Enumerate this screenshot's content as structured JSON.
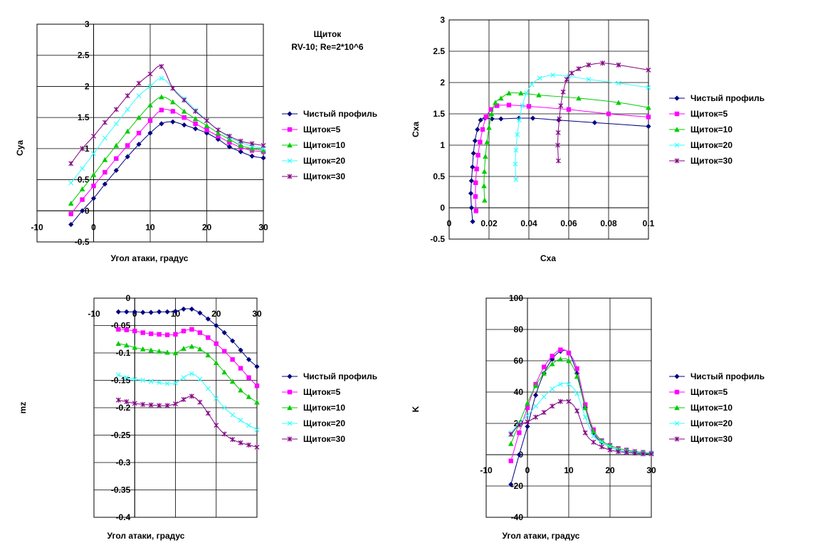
{
  "series_names": [
    "Чистый профиль",
    "Щиток=5",
    "Щиток=10",
    "Щиток=20",
    "Щиток=30"
  ],
  "series_colors": [
    "#000080",
    "#FF00FF",
    "#00CC00",
    "#33FFFF",
    "#800080"
  ],
  "series_markers": [
    "diamond",
    "square",
    "triangle",
    "x",
    "star"
  ],
  "chart_data": [
    {
      "id": "cya",
      "type": "line",
      "title": "Щиток",
      "subtitle": "RV-10; Re=2*10^6",
      "xlabel": "Угол атаки, градус",
      "ylabel": "Cya",
      "xlim": [
        -10,
        30
      ],
      "ylim": [
        -0.5,
        3
      ],
      "xticks": [
        "-10",
        "0",
        "10",
        "20",
        "30"
      ],
      "yticks": [
        "-0.5",
        "0",
        "0.5",
        "1",
        "1.5",
        "2",
        "2.5",
        "3"
      ],
      "legend": "right",
      "series": [
        {
          "name": "Чистый профиль",
          "x": [
            -4,
            -2,
            0,
            2,
            4,
            6,
            8,
            10,
            12,
            14,
            16,
            18,
            20,
            22,
            24,
            26,
            28,
            30
          ],
          "y": [
            -0.22,
            0,
            0.2,
            0.43,
            0.65,
            0.87,
            1.07,
            1.25,
            1.4,
            1.43,
            1.38,
            1.32,
            1.25,
            1.15,
            1.03,
            0.95,
            0.88,
            0.85
          ]
        },
        {
          "name": "Щиток=5",
          "x": [
            -4,
            -2,
            0,
            2,
            4,
            6,
            8,
            10,
            12,
            14,
            16,
            18,
            20,
            22,
            24,
            26,
            28,
            30
          ],
          "y": [
            -0.05,
            0.18,
            0.4,
            0.62,
            0.84,
            1.05,
            1.25,
            1.45,
            1.62,
            1.6,
            1.5,
            1.4,
            1.3,
            1.2,
            1.1,
            1.02,
            0.97,
            0.95
          ]
        },
        {
          "name": "Щиток=10",
          "x": [
            -4,
            -2,
            0,
            2,
            4,
            6,
            8,
            10,
            12,
            14,
            16,
            18,
            20,
            22,
            24,
            26,
            28,
            30
          ],
          "y": [
            0.12,
            0.35,
            0.58,
            0.82,
            1.05,
            1.28,
            1.5,
            1.7,
            1.83,
            1.75,
            1.6,
            1.48,
            1.37,
            1.25,
            1.15,
            1.05,
            1.0,
            0.97
          ]
        },
        {
          "name": "Щиток=20",
          "x": [
            -4,
            -2,
            0,
            2,
            4,
            6,
            8,
            10,
            12,
            14,
            16,
            18,
            20,
            22,
            24,
            26,
            28,
            30
          ],
          "y": [
            0.45,
            0.68,
            0.92,
            1.17,
            1.4,
            1.63,
            1.85,
            2.0,
            2.13,
            1.97,
            1.8,
            1.62,
            1.45,
            1.3,
            1.18,
            1.1,
            1.04,
            1.0
          ]
        },
        {
          "name": "Щиток=30",
          "x": [
            -4,
            -2,
            0,
            2,
            4,
            6,
            8,
            10,
            12,
            14,
            16,
            18,
            20,
            22,
            24,
            26,
            28,
            30
          ],
          "y": [
            0.76,
            1.0,
            1.2,
            1.42,
            1.63,
            1.85,
            2.05,
            2.2,
            2.32,
            1.97,
            1.78,
            1.6,
            1.45,
            1.3,
            1.2,
            1.12,
            1.08,
            1.05
          ]
        }
      ]
    },
    {
      "id": "polar",
      "type": "line",
      "xlabel": "Cxa",
      "ylabel": "Cxa",
      "xlim": [
        0,
        0.1
      ],
      "ylim": [
        -0.5,
        3
      ],
      "xticks": [
        "0",
        "0.02",
        "0.04",
        "0.06",
        "0.08",
        "0.1"
      ],
      "yticks": [
        "-0.5",
        "0",
        "0.5",
        "1",
        "1.5",
        "2",
        "2.5",
        "3"
      ],
      "legend": "right",
      "series": [
        {
          "name": "Чистый профиль",
          "x": [
            0.0118,
            0.0112,
            0.0109,
            0.0112,
            0.0117,
            0.0122,
            0.013,
            0.0142,
            0.0158,
            0.018,
            0.0215,
            0.026,
            0.035,
            0.042,
            0.055,
            0.073,
            0.1
          ],
          "y": [
            -0.22,
            0,
            0.23,
            0.43,
            0.65,
            0.87,
            1.07,
            1.25,
            1.4,
            1.43,
            1.42,
            1.42,
            1.43,
            1.43,
            1.4,
            1.36,
            1.3
          ]
        },
        {
          "name": "Щиток=5",
          "x": [
            0.0135,
            0.0132,
            0.0133,
            0.0138,
            0.0145,
            0.0155,
            0.0168,
            0.0185,
            0.021,
            0.024,
            0.03,
            0.04,
            0.06,
            0.08,
            0.1
          ],
          "y": [
            -0.05,
            0.18,
            0.4,
            0.62,
            0.84,
            1.05,
            1.25,
            1.45,
            1.57,
            1.63,
            1.64,
            1.62,
            1.57,
            1.5,
            1.45
          ]
        },
        {
          "name": "Щиток=10",
          "x": [
            0.0178,
            0.0175,
            0.0177,
            0.0182,
            0.019,
            0.02,
            0.0213,
            0.0232,
            0.026,
            0.03,
            0.036,
            0.045,
            0.065,
            0.085,
            0.1
          ],
          "y": [
            0.12,
            0.35,
            0.58,
            0.82,
            1.05,
            1.28,
            1.5,
            1.68,
            1.75,
            1.83,
            1.83,
            1.8,
            1.75,
            1.68,
            1.6
          ]
        },
        {
          "name": "Щиток=20",
          "x": [
            0.0335,
            0.0332,
            0.0335,
            0.0342,
            0.0352,
            0.0367,
            0.0388,
            0.0415,
            0.0455,
            0.052,
            0.06,
            0.07,
            0.085,
            0.1
          ],
          "y": [
            0.45,
            0.7,
            0.92,
            1.17,
            1.4,
            1.63,
            1.83,
            1.97,
            2.07,
            2.12,
            2.1,
            2.05,
            1.99,
            1.92
          ]
        },
        {
          "name": "Щиток=30",
          "x": [
            0.0548,
            0.0545,
            0.0547,
            0.0553,
            0.056,
            0.0572,
            0.059,
            0.0615,
            0.065,
            0.07,
            0.077,
            0.085,
            0.1
          ],
          "y": [
            0.75,
            1.0,
            1.2,
            1.42,
            1.63,
            1.85,
            2.05,
            2.15,
            2.22,
            2.28,
            2.31,
            2.28,
            2.2
          ]
        }
      ]
    },
    {
      "id": "mz",
      "type": "line",
      "xlabel": "Угол атаки, градус",
      "ylabel": "mz",
      "xlim": [
        -10,
        30
      ],
      "ylim": [
        -0.4,
        0
      ],
      "xticks": [
        "-10",
        "0",
        "10",
        "20",
        "30"
      ],
      "yticks": [
        "0",
        "-0.05",
        "-0.1",
        "-0.15",
        "-0.2",
        "-0.25",
        "-0.3",
        "-0.35",
        "-0.4"
      ],
      "legend": "right",
      "series": [
        {
          "name": "Чистый профиль",
          "x": [
            -4,
            -2,
            0,
            2,
            4,
            6,
            8,
            10,
            12,
            14,
            16,
            18,
            20,
            22,
            24,
            26,
            28,
            30
          ],
          "y": [
            -0.025,
            -0.025,
            -0.025,
            -0.026,
            -0.026,
            -0.025,
            -0.025,
            -0.024,
            -0.02,
            -0.02,
            -0.027,
            -0.038,
            -0.05,
            -0.063,
            -0.078,
            -0.095,
            -0.112,
            -0.125
          ]
        },
        {
          "name": "Щиток=5",
          "x": [
            -4,
            -2,
            0,
            2,
            4,
            6,
            8,
            10,
            12,
            14,
            16,
            18,
            20,
            22,
            24,
            26,
            28,
            30
          ],
          "y": [
            -0.057,
            -0.058,
            -0.06,
            -0.063,
            -0.065,
            -0.066,
            -0.067,
            -0.066,
            -0.06,
            -0.057,
            -0.063,
            -0.072,
            -0.083,
            -0.097,
            -0.112,
            -0.128,
            -0.145,
            -0.16
          ]
        },
        {
          "name": "Щиток=10",
          "x": [
            -4,
            -2,
            0,
            2,
            4,
            6,
            8,
            10,
            12,
            14,
            16,
            18,
            20,
            22,
            24,
            26,
            28,
            30
          ],
          "y": [
            -0.083,
            -0.086,
            -0.09,
            -0.093,
            -0.095,
            -0.097,
            -0.099,
            -0.1,
            -0.092,
            -0.088,
            -0.093,
            -0.104,
            -0.118,
            -0.135,
            -0.152,
            -0.168,
            -0.18,
            -0.19
          ]
        },
        {
          "name": "Щиток=20",
          "x": [
            -4,
            -2,
            0,
            2,
            4,
            6,
            8,
            10,
            12,
            14,
            16,
            18,
            20,
            22,
            24,
            26,
            28,
            30
          ],
          "y": [
            -0.14,
            -0.145,
            -0.148,
            -0.15,
            -0.152,
            -0.154,
            -0.156,
            -0.155,
            -0.145,
            -0.138,
            -0.148,
            -0.165,
            -0.183,
            -0.2,
            -0.213,
            -0.223,
            -0.232,
            -0.24
          ]
        },
        {
          "name": "Щиток=30",
          "x": [
            -4,
            -2,
            0,
            2,
            4,
            6,
            8,
            10,
            12,
            14,
            16,
            18,
            20,
            22,
            24,
            26,
            28,
            30
          ],
          "y": [
            -0.186,
            -0.189,
            -0.192,
            -0.194,
            -0.195,
            -0.196,
            -0.196,
            -0.193,
            -0.185,
            -0.179,
            -0.19,
            -0.21,
            -0.232,
            -0.248,
            -0.258,
            -0.264,
            -0.268,
            -0.272
          ]
        }
      ]
    },
    {
      "id": "k",
      "type": "line",
      "xlabel": "Угол атаки, градус",
      "ylabel": "K",
      "xlim": [
        -10,
        30
      ],
      "ylim": [
        -40,
        100
      ],
      "xticks": [
        "-10",
        "0",
        "10",
        "20",
        "30"
      ],
      "yticks": [
        "-40",
        "-20",
        "0",
        "20",
        "40",
        "60",
        "80",
        "100"
      ],
      "legend": "right",
      "series": [
        {
          "name": "Чистый профиль",
          "x": [
            -4,
            -2,
            0,
            2,
            4,
            6,
            8,
            10,
            12,
            14,
            16,
            18,
            20,
            22,
            24,
            26,
            28,
            30
          ],
          "y": [
            -19,
            0,
            18,
            38,
            52,
            61,
            66,
            65,
            52,
            30,
            14,
            8,
            5,
            3,
            2,
            1.5,
            1,
            1
          ]
        },
        {
          "name": "Щиток=5",
          "x": [
            -4,
            -2,
            0,
            2,
            4,
            6,
            8,
            10,
            12,
            14,
            16,
            18,
            20,
            22,
            24,
            26,
            28,
            30
          ],
          "y": [
            -4,
            14,
            30,
            45,
            56,
            63,
            67,
            65,
            55,
            32,
            16,
            9,
            6,
            4,
            3,
            2,
            1.5,
            1
          ]
        },
        {
          "name": "Щиток=10",
          "x": [
            -4,
            -2,
            0,
            2,
            4,
            6,
            8,
            10,
            12,
            14,
            16,
            18,
            20,
            22,
            24,
            26,
            28,
            30
          ],
          "y": [
            7,
            20,
            33,
            44,
            52,
            58,
            61,
            60,
            50,
            30,
            15,
            9,
            6,
            4,
            3,
            2,
            1.5,
            1
          ]
        },
        {
          "name": "Щиток=20",
          "x": [
            -4,
            -2,
            0,
            2,
            4,
            6,
            8,
            10,
            12,
            14,
            16,
            18,
            20,
            22,
            24,
            26,
            28,
            30
          ],
          "y": [
            14,
            20,
            25,
            31,
            37,
            42,
            45,
            45,
            39,
            24,
            12,
            8,
            5,
            3,
            2,
            1.5,
            1,
            1
          ]
        },
        {
          "name": "Щиток=30",
          "x": [
            -4,
            -2,
            0,
            2,
            4,
            6,
            8,
            10,
            12,
            14,
            16,
            18,
            20,
            22,
            24,
            26,
            28,
            30
          ],
          "y": [
            13,
            19,
            21,
            24,
            27,
            31,
            34,
            34,
            28,
            14,
            8,
            5,
            3,
            2,
            1.5,
            1,
            0.5,
            0.5
          ]
        }
      ]
    }
  ]
}
